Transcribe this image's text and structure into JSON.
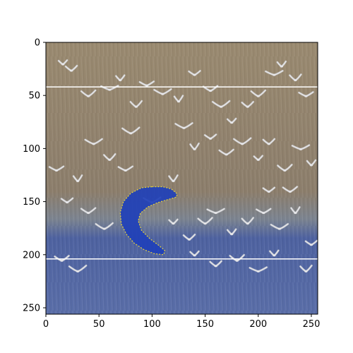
{
  "chart_data": {
    "type": "image",
    "title": "",
    "xlabel": "",
    "ylabel": "",
    "xlim": [
      0,
      256
    ],
    "ylim": [
      256,
      0
    ],
    "x_ticks": [
      0,
      50,
      100,
      150,
      200,
      250
    ],
    "y_ticks": [
      0,
      50,
      100,
      150,
      200,
      250
    ],
    "x_tick_labels": [
      "0",
      "50",
      "100",
      "150",
      "200",
      "250"
    ],
    "y_tick_labels": [
      "0",
      "50",
      "100",
      "150",
      "200",
      "250"
    ],
    "grid": false,
    "background_image": {
      "description_tags": [
        "flock-of-birds",
        "grassland",
        "water"
      ],
      "colors": {
        "grass_top": "#9a8a70",
        "grass_mid": "#8c7e6c",
        "transition": "#7c8490",
        "water": "#4e62a0",
        "water_bottom": "#5a6ea8",
        "bird": "#e8e8ea",
        "bird_shadow": "#bfc3c8"
      }
    },
    "horizontal_lines": [
      {
        "y": 42,
        "color": "#ffffff"
      },
      {
        "y": 204,
        "color": "#ffffff"
      }
    ],
    "mask": {
      "shape": "boomerang",
      "fill": "#1f40b8",
      "edge_color": "#e6d23c",
      "points": [
        [
          100,
          136
        ],
        [
          110,
          136
        ],
        [
          118,
          138
        ],
        [
          124,
          143
        ],
        [
          122,
          146
        ],
        [
          115,
          148
        ],
        [
          105,
          151
        ],
        [
          96,
          155
        ],
        [
          89,
          161
        ],
        [
          87,
          168
        ],
        [
          90,
          177
        ],
        [
          98,
          185
        ],
        [
          106,
          191
        ],
        [
          112,
          196
        ],
        [
          111,
          200
        ],
        [
          102,
          199
        ],
        [
          92,
          195
        ],
        [
          83,
          189
        ],
        [
          76,
          181
        ],
        [
          71,
          171
        ],
        [
          70,
          160
        ],
        [
          73,
          150
        ],
        [
          80,
          142
        ],
        [
          90,
          137
        ]
      ]
    },
    "bird_points": [
      [
        16,
        20
      ],
      [
        24,
        26
      ],
      [
        40,
        50
      ],
      [
        60,
        44
      ],
      [
        70,
        35
      ],
      [
        85,
        60
      ],
      [
        95,
        40
      ],
      [
        110,
        48
      ],
      [
        125,
        55
      ],
      [
        140,
        30
      ],
      [
        155,
        45
      ],
      [
        165,
        60
      ],
      [
        175,
        75
      ],
      [
        190,
        60
      ],
      [
        200,
        50
      ],
      [
        215,
        30
      ],
      [
        222,
        22
      ],
      [
        235,
        35
      ],
      [
        245,
        50
      ],
      [
        130,
        80
      ],
      [
        140,
        100
      ],
      [
        155,
        90
      ],
      [
        170,
        105
      ],
      [
        185,
        95
      ],
      [
        200,
        110
      ],
      [
        210,
        95
      ],
      [
        225,
        120
      ],
      [
        240,
        100
      ],
      [
        250,
        115
      ],
      [
        60,
        110
      ],
      [
        75,
        120
      ],
      [
        45,
        95
      ],
      [
        30,
        130
      ],
      [
        20,
        150
      ],
      [
        40,
        160
      ],
      [
        55,
        175
      ],
      [
        120,
        170
      ],
      [
        135,
        185
      ],
      [
        150,
        170
      ],
      [
        160,
        160
      ],
      [
        175,
        180
      ],
      [
        190,
        170
      ],
      [
        205,
        160
      ],
      [
        220,
        175
      ],
      [
        235,
        160
      ],
      [
        250,
        190
      ],
      [
        15,
        205
      ],
      [
        30,
        215
      ],
      [
        140,
        200
      ],
      [
        160,
        210
      ],
      [
        180,
        205
      ],
      [
        200,
        215
      ],
      [
        215,
        200
      ],
      [
        245,
        215
      ],
      [
        10,
        120
      ],
      [
        100,
        150
      ],
      [
        120,
        130
      ],
      [
        210,
        140
      ],
      [
        230,
        140
      ],
      [
        80,
        85
      ]
    ]
  }
}
